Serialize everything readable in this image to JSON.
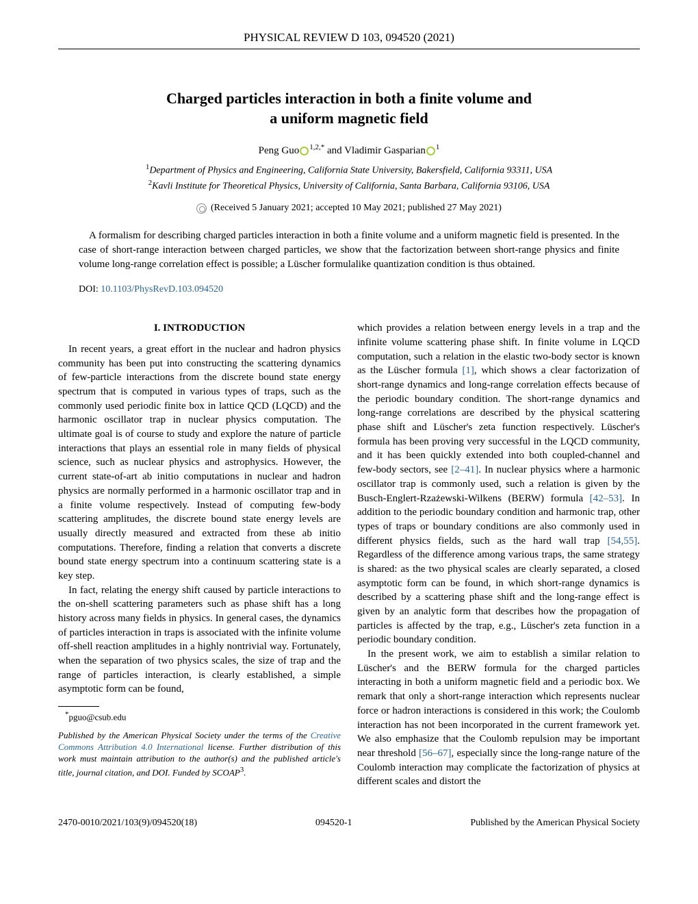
{
  "journal_header": "PHYSICAL REVIEW D 103, 094520 (2021)",
  "title_line1": "Charged particles interaction in both a finite volume and",
  "title_line2": "a uniform magnetic field",
  "author1": "Peng Guo",
  "author1_sup": "1,2,*",
  "author2": "Vladimir Gasparian",
  "author2_sup": "1",
  "authors_and": " and ",
  "affiliation1_sup": "1",
  "affiliation1": "Department of Physics and Engineering, California State University, Bakersfield, California 93311, USA",
  "affiliation2_sup": "2",
  "affiliation2": "Kavli Institute for Theoretical Physics, University of California, Santa Barbara, California 93106, USA",
  "dates": "(Received 5 January 2021; accepted 10 May 2021; published 27 May 2021)",
  "abstract": "A formalism for describing charged particles interaction in both a finite volume and a uniform magnetic field is presented. In the case of short-range interaction between charged particles, we show that the factorization between short-range physics and finite volume long-range correlation effect is possible; a Lüscher formulalike quantization condition is thus obtained.",
  "doi_label": "DOI: ",
  "doi_link": "10.1103/PhysRevD.103.094520",
  "section_heading": "I. INTRODUCTION",
  "left_p1": "In recent years, a great effort in the nuclear and hadron physics community has been put into constructing the scattering dynamics of few-particle interactions from the discrete bound state energy spectrum that is computed in various types of traps, such as the commonly used periodic finite box in lattice QCD (LQCD) and the harmonic oscillator trap in nuclear physics computation. The ultimate goal is of course to study and explore the nature of particle interactions that plays an essential role in many fields of physical science, such as nuclear physics and astrophysics. However, the current state-of-art ab initio computations in nuclear and hadron physics are normally performed in a harmonic oscillator trap and in a finite volume respectively. Instead of computing few-body scattering amplitudes, the discrete bound state energy levels are usually directly measured and extracted from these ab initio computations. Therefore, finding a relation that converts a discrete bound state energy spectrum into a continuum scattering state is a key step.",
  "left_p2": "In fact, relating the energy shift caused by particle interactions to the on-shell scattering parameters such as phase shift has a long history across many fields in physics. In general cases, the dynamics of particles interaction in traps is associated with the infinite volume off-shell reaction amplitudes in a highly nontrivial way. Fortunately, when the separation of two physics scales, the size of trap and the range of particles interaction, is clearly established, a simple asymptotic form can be found,",
  "footnote_marker": "*",
  "footnote_email": "pguo@csub.edu",
  "license_p1": "Published by the American Physical Society under the terms of the ",
  "license_link": "Creative Commons Attribution 4.0 International",
  "license_p2": " license. Further distribution of this work must maintain attribution to the author(s) and the published article's title, journal citation, and DOI. Funded by SCOAP",
  "license_sup": "3",
  "license_p3": ".",
  "right_p1_a": "which provides a relation between energy levels in a trap and the infinite volume scattering phase shift. In finite volume in LQCD computation, such a relation in the elastic two-body sector is known as the Lüscher formula ",
  "ref1": "[1]",
  "right_p1_b": ", which shows a clear factorization of short-range dynamics and long-range correlation effects because of the periodic boundary condition. The short-range dynamics and long-range correlations are described by the physical scattering phase shift and Lüscher's zeta function respectively. Lüscher's formula has been proving very successful in the LQCD community, and it has been quickly extended into both coupled-channel and few-body sectors, see ",
  "ref2": "[2–41]",
  "right_p1_c": ". In nuclear physics where a harmonic oscillator trap is commonly used, such a relation is given by the Busch-Englert-Rzażewski-Wilkens (BERW) formula ",
  "ref3": "[42–53]",
  "right_p1_d": ". In addition to the periodic boundary condition and harmonic trap, other types of traps or boundary conditions are also commonly used in different physics fields, such as the hard wall trap ",
  "ref4": "[54,55]",
  "right_p1_e": ". Regardless of the difference among various traps, the same strategy is shared: as the two physical scales are clearly separated, a closed asymptotic form can be found, in which short-range dynamics is described by a scattering phase shift and the long-range effect is given by an analytic form that describes how the propagation of particles is affected by the trap, e.g., Lüscher's zeta function in a periodic boundary condition.",
  "right_p2_a": "In the present work, we aim to establish a similar relation to Lüscher's and the BERW formula for the charged particles interacting in both a uniform magnetic field and a periodic box. We remark that only a short-range interaction which represents nuclear force or hadron interactions is considered in this work; the Coulomb interaction has not been incorporated in the current framework yet. We also emphasize that the Coulomb repulsion may be important near threshold ",
  "ref5": "[56–67]",
  "right_p2_b": ", especially since the long-range nature of the Coulomb interaction may complicate the factorization of physics at different scales and distort the",
  "footer_left": "2470-0010/2021/103(9)/094520(18)",
  "footer_center": "094520-1",
  "footer_right": "Published by the American Physical Society"
}
